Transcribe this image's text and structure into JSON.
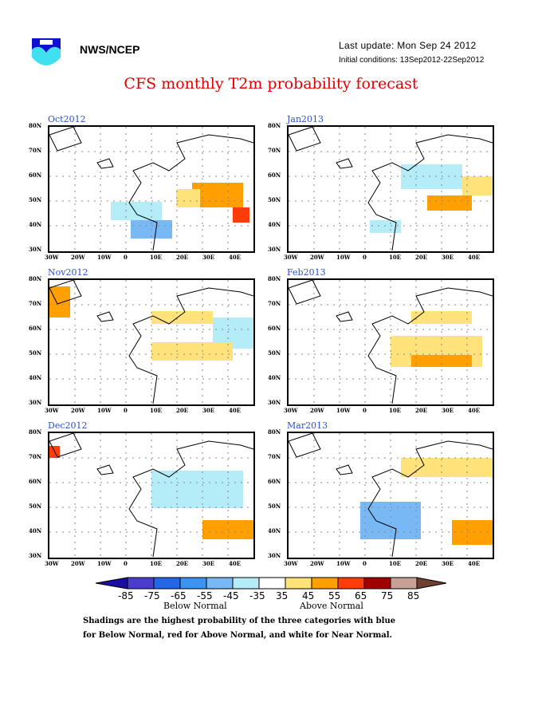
{
  "header": {
    "org": "NWS/NCEP",
    "last_update": "Last update: Mon Sep 24 2012",
    "initial_conditions": "Initial conditions: 13Sep2012-22Sep2012",
    "title": "CFS monthly T2m probability forecast"
  },
  "axes": {
    "lat_ticks": [
      "80N",
      "70N",
      "60N",
      "50N",
      "40N",
      "30N"
    ],
    "lon_ticks": [
      "30W",
      "20W",
      "10W",
      "0",
      "10E",
      "20E",
      "30E",
      "40E"
    ]
  },
  "panels": [
    {
      "label": "Oct2012"
    },
    {
      "label": "Jan2013"
    },
    {
      "label": "Nov2012"
    },
    {
      "label": "Feb2013"
    },
    {
      "label": "Dec2012"
    },
    {
      "label": "Mar2013"
    }
  ],
  "legend": {
    "ticks": [
      "-85",
      "-75",
      "-65",
      "-55",
      "-45",
      "-35",
      "35",
      "45",
      "55",
      "65",
      "75",
      "85"
    ],
    "colors": [
      "#1a0fa0",
      "#4a3ccc",
      "#2466e6",
      "#3c94f0",
      "#78b8f4",
      "#b4ecf8",
      "#ffffff",
      "#ffe27a",
      "#ffa000",
      "#ff3c0a",
      "#a00000",
      "#c8a096",
      "#6e4030"
    ],
    "below_label": "Below Normal",
    "above_label": "Above Normal"
  },
  "footnote": {
    "line1": "Shadings are the highest probability of the three categories with blue",
    "line2": "for Below Normal, red for Above Normal, and white for Near Normal."
  }
}
